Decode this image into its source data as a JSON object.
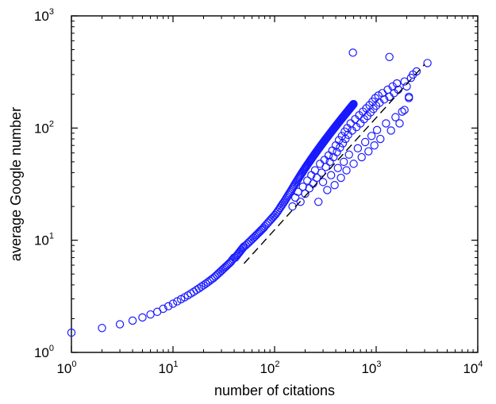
{
  "chart_data": {
    "type": "scatter",
    "xlabel": "number of citations",
    "ylabel": "average Google number",
    "x_scale": "log",
    "y_scale": "log",
    "xlim": [
      1,
      10000
    ],
    "ylim": [
      1,
      1000
    ],
    "x_ticks": [
      {
        "value": 1,
        "base": "10",
        "exp": "0"
      },
      {
        "value": 10,
        "base": "10",
        "exp": "1"
      },
      {
        "value": 100,
        "base": "10",
        "exp": "2"
      },
      {
        "value": 1000,
        "base": "10",
        "exp": "3"
      },
      {
        "value": 10000,
        "base": "10",
        "exp": "4"
      }
    ],
    "y_ticks": [
      {
        "value": 1,
        "base": "10",
        "exp": "0"
      },
      {
        "value": 10,
        "base": "10",
        "exp": "1"
      },
      {
        "value": 100,
        "base": "10",
        "exp": "2"
      },
      {
        "value": 1000,
        "base": "10",
        "exp": "3"
      }
    ],
    "grid": false,
    "marker": "open-circle",
    "marker_color": "#1a1aff",
    "fit_line": {
      "style": "dashed",
      "color": "#000000",
      "points": [
        [
          50,
          6.2
        ],
        [
          3000,
          370
        ]
      ]
    },
    "scatter_points": [
      [
        1,
        1.5
      ],
      [
        2,
        1.65
      ],
      [
        3,
        1.78
      ],
      [
        4,
        1.92
      ],
      [
        5,
        2.05
      ],
      [
        6,
        2.18
      ],
      [
        7,
        2.3
      ],
      [
        8,
        2.45
      ],
      [
        9,
        2.58
      ],
      [
        10,
        2.72
      ],
      [
        11,
        2.85
      ],
      [
        12,
        2.98
      ],
      [
        13,
        3.1
      ],
      [
        14,
        3.22
      ],
      [
        15,
        3.35
      ],
      [
        16,
        3.47
      ],
      [
        17,
        3.6
      ],
      [
        18,
        3.72
      ],
      [
        19,
        3.85
      ],
      [
        20,
        3.97
      ],
      [
        21,
        4.1
      ],
      [
        22,
        4.22
      ],
      [
        23,
        4.35
      ],
      [
        24,
        4.48
      ],
      [
        25,
        4.6
      ],
      [
        26,
        4.75
      ],
      [
        27,
        4.9
      ],
      [
        28,
        5.05
      ],
      [
        29,
        5.2
      ],
      [
        30,
        5.35
      ],
      [
        31,
        5.5
      ],
      [
        32,
        5.65
      ],
      [
        33,
        5.8
      ],
      [
        34,
        5.95
      ],
      [
        35,
        6.1
      ],
      [
        36,
        6.25
      ],
      [
        37,
        6.4
      ],
      [
        38,
        6.6
      ],
      [
        39,
        6.8
      ],
      [
        40,
        7.0
      ],
      [
        41,
        7.0
      ],
      [
        42,
        7.2
      ],
      [
        43,
        7.4
      ],
      [
        44,
        7.6
      ],
      [
        45,
        7.8
      ],
      [
        46,
        8.0
      ],
      [
        47,
        8.2
      ],
      [
        48,
        8.4
      ],
      [
        49,
        8.6
      ],
      [
        50,
        8.8
      ],
      [
        52,
        9.0
      ],
      [
        54,
        9.3
      ],
      [
        56,
        9.6
      ],
      [
        58,
        9.9
      ],
      [
        60,
        10.2
      ],
      [
        62,
        10.5
      ],
      [
        64,
        10.8
      ],
      [
        66,
        11.1
      ],
      [
        68,
        11.4
      ],
      [
        70,
        11.7
      ],
      [
        72,
        12.0
      ],
      [
        74,
        12.3
      ],
      [
        76,
        12.6
      ],
      [
        78,
        12.9
      ],
      [
        80,
        13.3
      ],
      [
        83,
        13.8
      ],
      [
        86,
        14.3
      ],
      [
        89,
        14.8
      ],
      [
        92,
        15.3
      ],
      [
        95,
        15.8
      ],
      [
        98,
        16.3
      ],
      [
        101,
        16.8
      ],
      [
        104,
        17.4
      ],
      [
        107,
        18.0
      ],
      [
        110,
        18.7
      ],
      [
        113,
        19.4
      ],
      [
        116,
        20.1
      ],
      [
        119,
        20.8
      ],
      [
        122,
        21.5
      ],
      [
        125,
        22.2
      ],
      [
        128,
        23.0
      ],
      [
        131,
        23.8
      ],
      [
        134,
        24.6
      ],
      [
        137,
        25.4
      ],
      [
        140,
        26.2
      ],
      [
        143,
        27.0
      ],
      [
        146,
        27.8
      ],
      [
        149,
        28.7
      ],
      [
        152,
        29.6
      ],
      [
        155,
        30.5
      ],
      [
        158,
        31.4
      ],
      [
        161,
        32.3
      ],
      [
        164,
        33.2
      ],
      [
        167,
        34.1
      ],
      [
        170,
        35.0
      ],
      [
        173,
        35.9
      ],
      [
        176,
        36.8
      ],
      [
        179,
        37.7
      ],
      [
        182,
        38.6
      ],
      [
        185,
        39.5
      ],
      [
        188,
        40.4
      ],
      [
        191,
        41.3
      ],
      [
        194,
        42.2
      ],
      [
        197,
        43.1
      ],
      [
        200,
        44.0
      ],
      [
        203,
        44.9
      ],
      [
        206,
        45.8
      ],
      [
        209,
        46.7
      ],
      [
        212,
        47.6
      ],
      [
        215,
        48.5
      ],
      [
        218,
        49.4
      ],
      [
        221,
        50.3
      ],
      [
        224,
        51.2
      ],
      [
        227,
        52.1
      ],
      [
        230,
        53.0
      ],
      [
        233,
        53.9
      ],
      [
        236,
        54.8
      ],
      [
        239,
        55.7
      ],
      [
        242,
        56.6
      ],
      [
        245,
        57.5
      ],
      [
        248,
        58.4
      ],
      [
        251,
        59.3
      ],
      [
        254,
        60.2
      ],
      [
        257,
        61.1
      ],
      [
        260,
        62.0
      ],
      [
        263,
        62.9
      ],
      [
        266,
        63.8
      ],
      [
        269,
        64.7
      ],
      [
        272,
        65.6
      ],
      [
        275,
        66.5
      ],
      [
        278,
        67.4
      ],
      [
        281,
        68.3
      ],
      [
        284,
        69.2
      ],
      [
        287,
        70.1
      ],
      [
        290,
        71.0
      ],
      [
        293,
        71.9
      ],
      [
        296,
        72.8
      ],
      [
        299,
        73.7
      ],
      [
        302,
        74.6
      ],
      [
        305,
        75.5
      ],
      [
        308,
        76.4
      ],
      [
        311,
        77.3
      ],
      [
        314,
        78.2
      ],
      [
        317,
        79.1
      ],
      [
        320,
        80.0
      ],
      [
        323,
        80.9
      ],
      [
        326,
        81.8
      ],
      [
        329,
        82.7
      ],
      [
        332,
        83.6
      ],
      [
        335,
        84.5
      ],
      [
        338,
        85.4
      ],
      [
        341,
        86.3
      ],
      [
        344,
        87.2
      ],
      [
        347,
        88.1
      ],
      [
        350,
        89.0
      ],
      [
        353,
        89.9
      ],
      [
        356,
        90.8
      ],
      [
        359,
        91.7
      ],
      [
        362,
        92.6
      ],
      [
        365,
        93.5
      ],
      [
        368,
        94.4
      ],
      [
        371,
        95.3
      ],
      [
        374,
        96.2
      ],
      [
        377,
        97.1
      ],
      [
        380,
        98.0
      ],
      [
        383,
        98.9
      ],
      [
        386,
        99.8
      ],
      [
        389,
        100.7
      ],
      [
        392,
        101.6
      ],
      [
        395,
        102.5
      ],
      [
        398,
        103.4
      ],
      [
        401,
        104.3
      ],
      [
        404,
        105.2
      ],
      [
        407,
        106.1
      ],
      [
        410,
        107.0
      ],
      [
        413,
        107.9
      ],
      [
        416,
        108.8
      ],
      [
        419,
        109.7
      ],
      [
        422,
        110.6
      ],
      [
        425,
        111.5
      ],
      [
        428,
        112.4
      ],
      [
        431,
        113.3
      ],
      [
        434,
        114.2
      ],
      [
        437,
        115.1
      ],
      [
        440,
        116.0
      ],
      [
        443,
        116.9
      ],
      [
        446,
        117.8
      ],
      [
        449,
        118.7
      ],
      [
        452,
        119.6
      ],
      [
        455,
        120.5
      ],
      [
        458,
        121.4
      ],
      [
        461,
        122.3
      ],
      [
        464,
        123.2
      ],
      [
        467,
        124.1
      ],
      [
        470,
        125.0
      ],
      [
        473,
        125.9
      ],
      [
        476,
        126.8
      ],
      [
        479,
        127.7
      ],
      [
        482,
        128.6
      ],
      [
        485,
        129.5
      ],
      [
        488,
        130.4
      ],
      [
        491,
        131.3
      ],
      [
        494,
        132.2
      ],
      [
        497,
        133.1
      ],
      [
        500,
        134.0
      ],
      [
        503,
        134.9
      ],
      [
        506,
        135.8
      ],
      [
        509,
        136.7
      ],
      [
        512,
        137.6
      ],
      [
        515,
        138.5
      ],
      [
        518,
        139.4
      ],
      [
        521,
        140.3
      ],
      [
        524,
        141.2
      ],
      [
        527,
        142.1
      ],
      [
        530,
        143.0
      ],
      [
        533,
        143.9
      ],
      [
        536,
        144.8
      ],
      [
        539,
        145.7
      ],
      [
        542,
        146.6
      ],
      [
        545,
        147.5
      ],
      [
        548,
        148.4
      ],
      [
        551,
        149.3
      ],
      [
        554,
        150.2
      ],
      [
        557,
        151.1
      ],
      [
        560,
        152.0
      ],
      [
        563,
        152.9
      ],
      [
        566,
        153.8
      ],
      [
        569,
        154.7
      ],
      [
        572,
        155.6
      ],
      [
        575,
        156.5
      ],
      [
        578,
        157.4
      ],
      [
        581,
        158.3
      ],
      [
        584,
        159.2
      ],
      [
        587,
        160.1
      ],
      [
        590,
        161.0
      ],
      [
        593,
        161.9
      ],
      [
        596,
        162.8
      ],
      [
        599,
        163.7
      ],
      [
        150,
        20
      ],
      [
        160,
        24
      ],
      [
        170,
        27
      ],
      [
        180,
        22
      ],
      [
        190,
        30
      ],
      [
        200,
        26
      ],
      [
        210,
        34
      ],
      [
        220,
        29
      ],
      [
        230,
        38
      ],
      [
        240,
        32
      ],
      [
        250,
        42
      ],
      [
        260,
        36
      ],
      [
        270,
        22
      ],
      [
        280,
        48
      ],
      [
        290,
        40
      ],
      [
        300,
        33
      ],
      [
        310,
        52
      ],
      [
        320,
        45
      ],
      [
        330,
        28
      ],
      [
        340,
        57
      ],
      [
        350,
        50
      ],
      [
        360,
        38
      ],
      [
        370,
        63
      ],
      [
        380,
        55
      ],
      [
        390,
        31
      ],
      [
        400,
        70
      ],
      [
        410,
        61
      ],
      [
        420,
        44
      ],
      [
        430,
        78
      ],
      [
        440,
        67
      ],
      [
        450,
        36
      ],
      [
        460,
        85
      ],
      [
        470,
        73
      ],
      [
        480,
        50
      ],
      [
        490,
        93
      ],
      [
        500,
        80
      ],
      [
        510,
        42
      ],
      [
        520,
        100
      ],
      [
        530,
        87
      ],
      [
        540,
        58
      ],
      [
        560,
        110
      ],
      [
        580,
        95
      ],
      [
        600,
        48
      ],
      [
        620,
        120
      ],
      [
        640,
        102
      ],
      [
        660,
        66
      ],
      [
        680,
        130
      ],
      [
        700,
        110
      ],
      [
        720,
        55
      ],
      [
        740,
        140
      ],
      [
        760,
        120
      ],
      [
        780,
        75
      ],
      [
        800,
        150
      ],
      [
        820,
        128
      ],
      [
        840,
        62
      ],
      [
        860,
        160
      ],
      [
        880,
        138
      ],
      [
        900,
        85
      ],
      [
        920,
        172
      ],
      [
        940,
        148
      ],
      [
        960,
        70
      ],
      [
        980,
        185
      ],
      [
        1000,
        158
      ],
      [
        1020,
        96
      ],
      [
        1050,
        195
      ],
      [
        1080,
        168
      ],
      [
        1100,
        80
      ],
      [
        1150,
        205
      ],
      [
        1200,
        180
      ],
      [
        1250,
        110
      ],
      [
        1300,
        220
      ],
      [
        1350,
        190
      ],
      [
        1400,
        95
      ],
      [
        1450,
        235
      ],
      [
        1500,
        205
      ],
      [
        1550,
        125
      ],
      [
        1600,
        250
      ],
      [
        1650,
        220
      ],
      [
        1700,
        110
      ],
      [
        1800,
        140
      ],
      [
        1900,
        260
      ],
      [
        2000,
        235
      ],
      [
        2100,
        185
      ],
      [
        2200,
        280
      ],
      [
        2300,
        300
      ],
      [
        2500,
        320
      ],
      [
        590,
        470
      ],
      [
        1350,
        430
      ],
      [
        3200,
        380
      ],
      [
        2100,
        190
      ],
      [
        1900,
        145
      ]
    ]
  }
}
